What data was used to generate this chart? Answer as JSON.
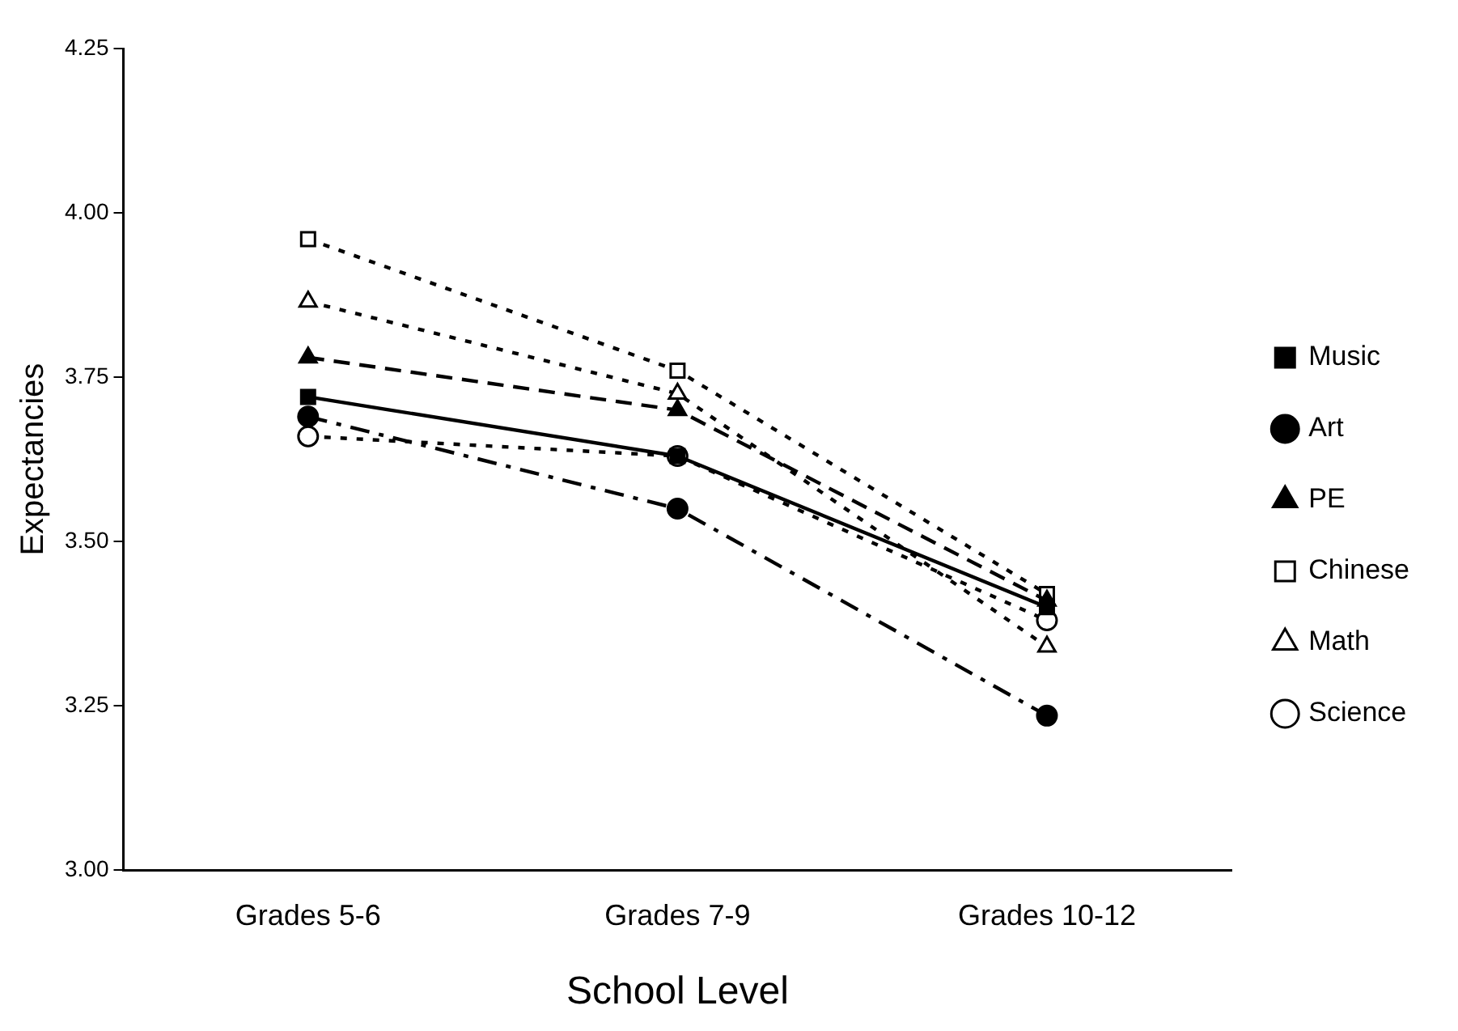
{
  "chart_data": {
    "type": "line",
    "xlabel": "School Level",
    "ylabel": "Expectancies",
    "categories": [
      "Grades 5-6",
      "Grades 7-9",
      "Grades 10-12"
    ],
    "ylim": [
      3,
      4.25
    ],
    "yticks": [
      {
        "value": 3,
        "label": "3.00"
      },
      {
        "value": 3.25,
        "label": "3.25"
      },
      {
        "value": 3.5,
        "label": "3.50"
      },
      {
        "value": 3.75,
        "label": "3.75"
      },
      {
        "value": 4,
        "label": "4.00"
      },
      {
        "value": 4.25,
        "label": "4.25"
      }
    ],
    "grid": false,
    "legend": "right",
    "series": [
      {
        "name": "Music",
        "color": "#000000",
        "marker": "square",
        "line_style": "solid",
        "values": [
          3.72,
          3.63,
          3.4
        ]
      },
      {
        "name": "Art",
        "color": "#000000",
        "marker": "circle",
        "line_style": "dashdot",
        "values": [
          3.69,
          3.55,
          3.235
        ]
      },
      {
        "name": "PE",
        "color": "#000000",
        "marker": "triangle",
        "line_style": "dashed",
        "values": [
          3.78,
          3.7,
          3.41
        ]
      },
      {
        "name": "Chinese",
        "color": "#000000",
        "marker": "square",
        "line_style": "dotted",
        "values": [
          3.96,
          3.76,
          3.42
        ]
      },
      {
        "name": "Math",
        "color": "#000000",
        "marker": "triangle",
        "line_style": "dotted",
        "values": [
          3.865,
          3.725,
          3.34
        ]
      },
      {
        "name": "Science",
        "color": "#000000",
        "marker": "circle",
        "line_style": "dotted",
        "values": [
          3.66,
          3.63,
          3.38
        ]
      }
    ]
  }
}
